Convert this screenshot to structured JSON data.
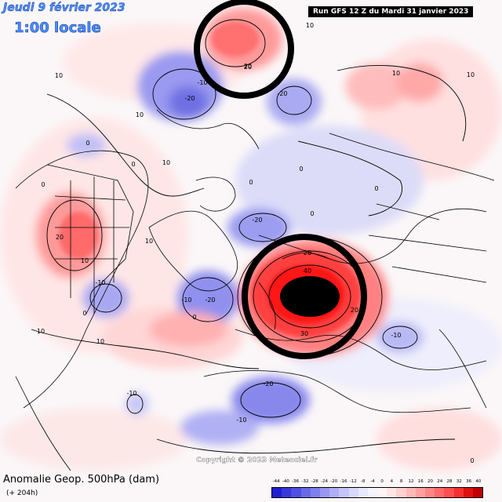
{
  "header": {
    "date": "Jeudi 9 février 2023",
    "time": "1:00 locale",
    "run": "Run GFS 12 Z du Mardi 31 janvier 2023"
  },
  "footer": {
    "title": "Anomalie Geop. 500hPa (dam)",
    "lead": "(+ 204h)",
    "copyright": "Copyright © 2023 Meteociel.fr"
  },
  "legend": {
    "ticks": [
      "-44",
      "-40",
      "-36",
      "-32",
      "-28",
      "-24",
      "-20",
      "-16",
      "-12",
      "-8",
      "-4",
      "0",
      "4",
      "8",
      "12",
      "16",
      "20",
      "24",
      "28",
      "32",
      "36",
      "40"
    ],
    "colors": [
      "#1f1fd0",
      "#3737dc",
      "#5050e4",
      "#6a6ae8",
      "#8080ec",
      "#9898f0",
      "#aeaef4",
      "#c4c4f8",
      "#d8d8fb",
      "#e8e8fd",
      "#f4f4ff",
      "#fff4f4",
      "#ffe6e6",
      "#ffd0d0",
      "#ffb8b8",
      "#ffa0a0",
      "#ff8585",
      "#ff6a6a",
      "#ff4f4f",
      "#f53030",
      "#e01010",
      "#c00000"
    ]
  },
  "contour_labels": [
    "10",
    "-10",
    "20",
    "-20",
    "0",
    "30",
    "40",
    "-30"
  ],
  "highlights": [
    {
      "name": "anomaly-circle-north",
      "value": "20"
    },
    {
      "name": "anomaly-circle-scandinavia",
      "value": "40"
    }
  ],
  "colors": {
    "positive_strong": "#ff2020",
    "positive_weak": "#ffd0d0",
    "negative_strong": "#3a3ae0",
    "negative_weak": "#d0d0f8",
    "core": "#000000"
  }
}
